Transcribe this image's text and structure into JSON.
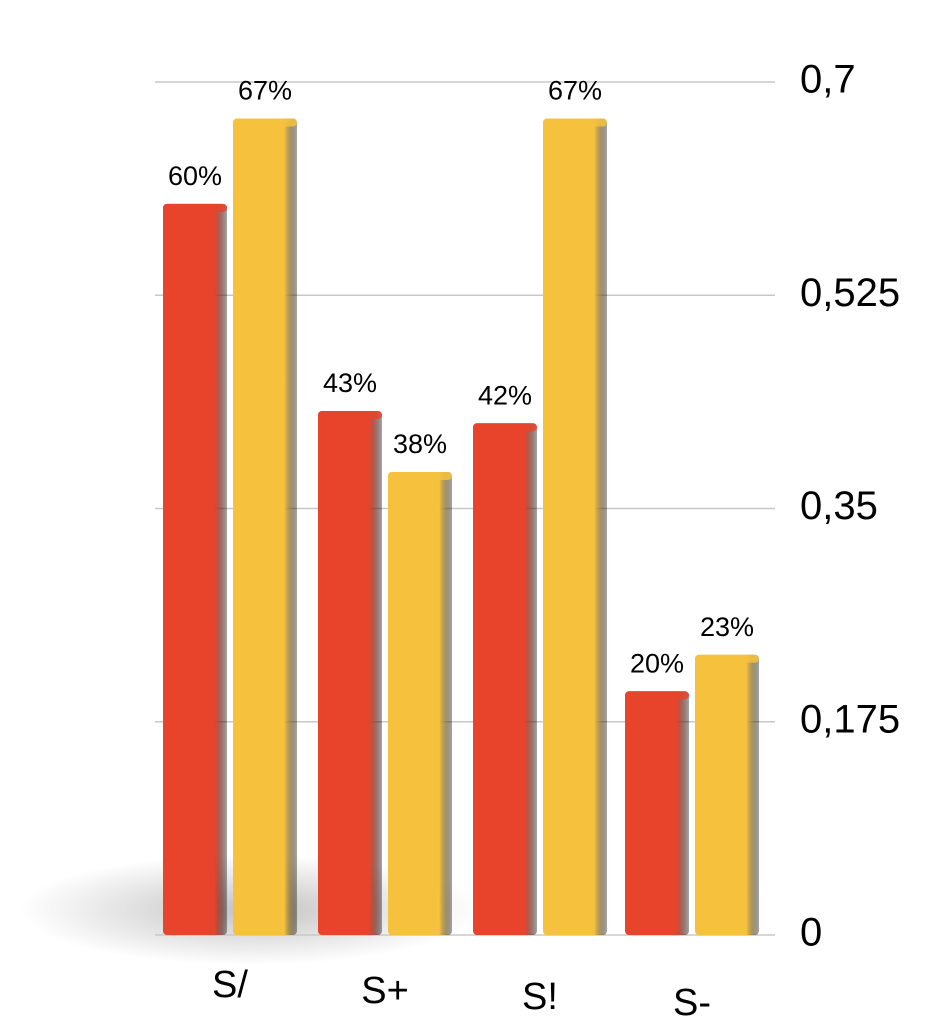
{
  "chart_data": {
    "type": "bar",
    "categories": [
      "S/",
      "S+",
      "S!",
      "S-"
    ],
    "series": [
      {
        "color": "#e8442c",
        "values": [
          0.6,
          0.43,
          0.42,
          0.2
        ],
        "value_labels": [
          "60%",
          "43%",
          "42%",
          "20%"
        ]
      },
      {
        "color": "#f6c23e",
        "values": [
          0.67,
          0.38,
          0.67,
          0.23
        ],
        "value_labels": [
          "67%",
          "38%",
          "67%",
          "23%"
        ]
      }
    ],
    "ylim": [
      0,
      0.7
    ],
    "yticks": [
      0,
      {
        "value": 0.175,
        "label": "0,175"
      },
      {
        "value": 0.35,
        "label": "0,35"
      },
      {
        "value": 0.525,
        "label": "0,525"
      },
      {
        "value": 0.7,
        "label": "0,7"
      }
    ],
    "grid": true,
    "y_axis_side": "right"
  }
}
